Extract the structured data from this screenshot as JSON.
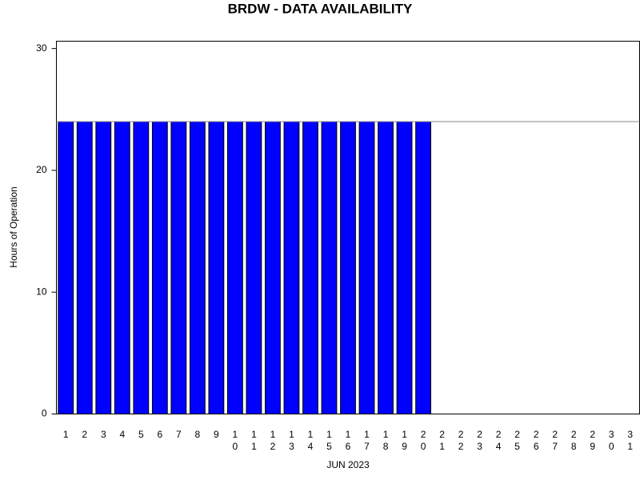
{
  "chart_data": {
    "type": "bar",
    "title": "BRDW - DATA AVAILABILITY",
    "x_label": "JUN 2023",
    "y_label": "Hours of Operation",
    "categories": [
      "1",
      "2",
      "3",
      "4",
      "5",
      "6",
      "7",
      "8",
      "9",
      "10",
      "11",
      "12",
      "13",
      "14",
      "15",
      "16",
      "17",
      "18",
      "19",
      "20",
      "21",
      "22",
      "23",
      "24",
      "25",
      "26",
      "27",
      "28",
      "29",
      "30",
      "31"
    ],
    "values": [
      24,
      24,
      24,
      24,
      24,
      24,
      24,
      24,
      24,
      24,
      24,
      24,
      24,
      24,
      24,
      24,
      24,
      24,
      24,
      24,
      null,
      null,
      null,
      null,
      null,
      null,
      null,
      null,
      null,
      null,
      null
    ],
    "color": "#0000ff",
    "reference_line": 24,
    "reference_color": "#888888",
    "ylim": [
      0,
      30.6
    ],
    "yticks": [
      0,
      10,
      20,
      30
    ],
    "grid": false
  }
}
